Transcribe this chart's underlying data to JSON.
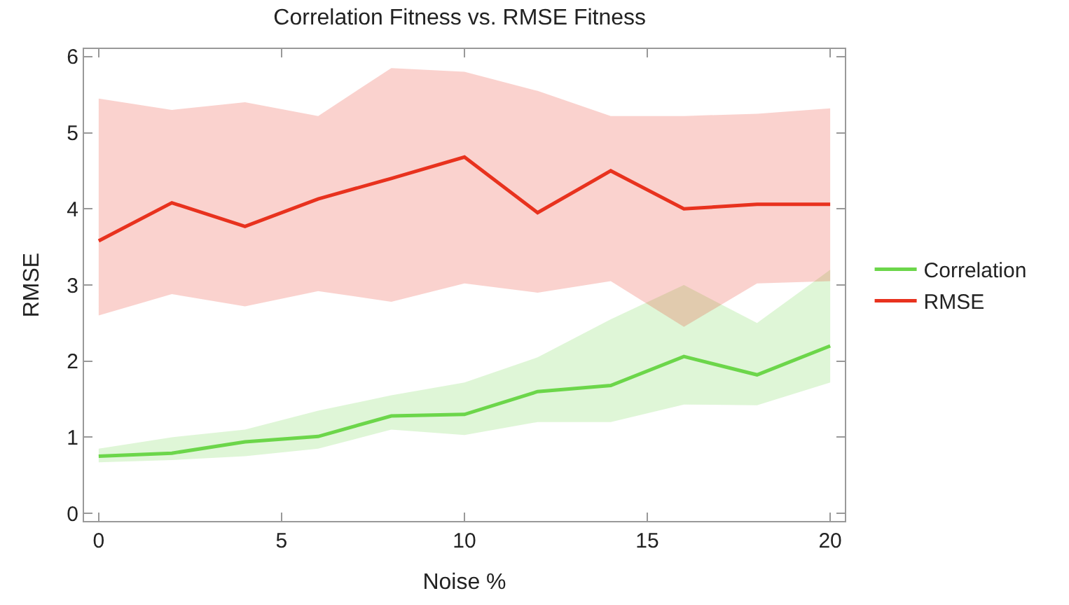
{
  "chart_data": {
    "type": "line",
    "title": "Correlation Fitness vs. RMSE Fitness",
    "xlabel": "Noise %",
    "ylabel": "RMSE",
    "x": [
      0,
      2,
      4,
      6,
      8,
      10,
      12,
      14,
      16,
      18,
      20
    ],
    "series": [
      {
        "name": "Correlation",
        "color": "#6cd64a",
        "values": [
          0.75,
          0.79,
          0.94,
          1.01,
          1.28,
          1.3,
          1.6,
          1.68,
          2.06,
          1.82,
          2.2
        ],
        "lower": [
          0.67,
          0.7,
          0.75,
          0.85,
          1.1,
          1.03,
          1.2,
          1.2,
          1.43,
          1.42,
          1.72
        ],
        "upper": [
          0.85,
          1.0,
          1.1,
          1.35,
          1.55,
          1.72,
          2.05,
          2.55,
          3.0,
          2.5,
          3.2
        ]
      },
      {
        "name": "RMSE",
        "color": "#e8321e",
        "values": [
          3.58,
          4.08,
          3.77,
          4.13,
          4.4,
          4.68,
          3.95,
          4.5,
          4.0,
          4.06,
          4.06
        ],
        "lower": [
          2.6,
          2.88,
          2.72,
          2.92,
          2.78,
          3.02,
          2.9,
          3.05,
          2.45,
          3.02,
          3.05
        ],
        "upper": [
          5.45,
          5.3,
          5.4,
          5.22,
          5.85,
          5.8,
          5.55,
          5.22,
          5.22,
          5.25,
          5.32
        ]
      }
    ],
    "xlim": [
      -0.4,
      20.4
    ],
    "ylim": [
      -0.1,
      6.1
    ],
    "xticks": [
      0,
      5,
      10,
      15,
      20
    ],
    "yticks": [
      0,
      1,
      2,
      3,
      4,
      5,
      6
    ],
    "legend": "right",
    "marker": "none",
    "line_style": "solid"
  }
}
